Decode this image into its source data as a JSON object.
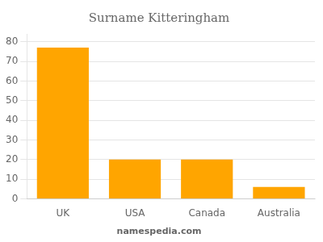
{
  "chart_data": {
    "type": "bar",
    "title": "Surname Kitteringham",
    "categories": [
      "UK",
      "USA",
      "Canada",
      "Australia"
    ],
    "values": [
      77,
      20,
      20,
      6
    ],
    "color": "#FFA500",
    "ylim": [
      0,
      84
    ],
    "yticks": [
      0,
      10,
      20,
      30,
      40,
      50,
      60,
      70,
      80
    ],
    "grid": true,
    "annotation": "namespedia.com"
  }
}
